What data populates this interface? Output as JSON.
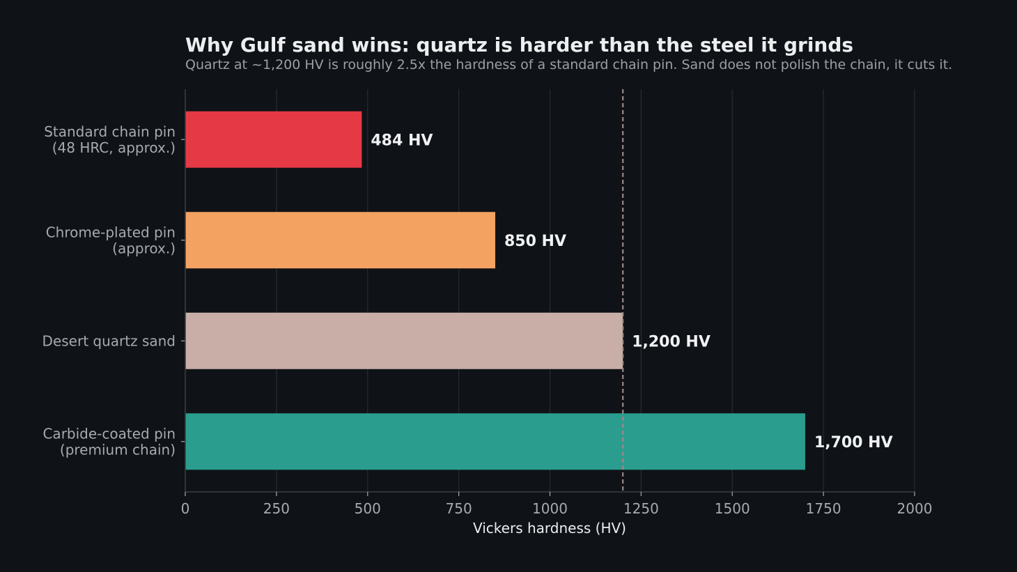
{
  "chart_data": {
    "type": "bar",
    "orientation": "horizontal",
    "title": "Why Gulf sand wins: quartz is harder than the steel it grinds",
    "subtitle": "Quartz at ~1,200 HV is roughly 2.5x the hardness of a standard chain pin. Sand does not polish the chain, it cuts it.",
    "xlabel": "Vickers hardness (HV)",
    "ylabel": "",
    "xlim": [
      0,
      2000
    ],
    "xticks": [
      0,
      250,
      500,
      750,
      1000,
      1250,
      1500,
      1750,
      2000
    ],
    "grid": "vertical",
    "legend": "none",
    "reference_line": {
      "value": 1200,
      "style": "dashed",
      "color": "#9a8a88"
    },
    "categories": [
      [
        "Standard chain pin",
        "(48 HRC, approx.)"
      ],
      [
        "Chrome-plated pin",
        "(approx.)"
      ],
      [
        "Desert quartz sand"
      ],
      [
        "Carbide-coated pin",
        "(premium chain)"
      ]
    ],
    "values": [
      484,
      850,
      1200,
      1700
    ],
    "value_labels": [
      "484 HV",
      "850 HV",
      "1,200 HV",
      "1,700 HV"
    ],
    "colors": [
      "#e63946",
      "#f4a261",
      "#c9aea8",
      "#2a9d8f"
    ]
  },
  "theme": {
    "background": "#0f1317",
    "title_color": "#eceef0",
    "subtitle_color": "#9aa0a6",
    "tick_label_color": "#a6abb1",
    "axis_label_color": "#eceef0",
    "value_label_color": "#f1f2f4",
    "grid_color": "#252a30",
    "axis_color": "#3a3f45"
  }
}
